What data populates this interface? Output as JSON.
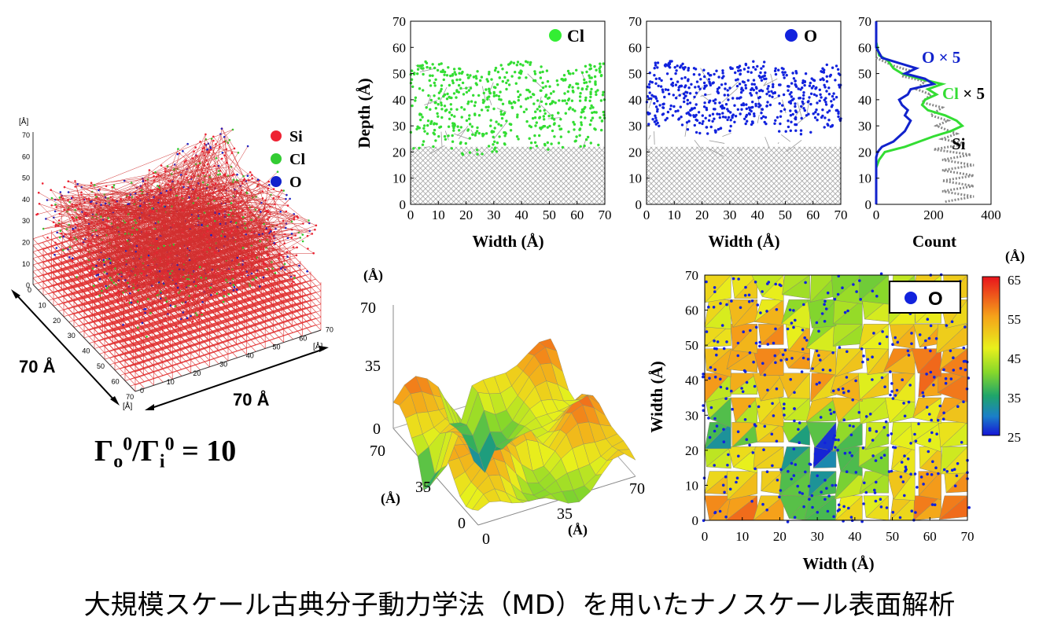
{
  "caption": "大規模スケール古典分子動力学法（MD）を用いたナノスケール表面解析",
  "ratio": {
    "gamma_o": "Γ",
    "o_sub": "o",
    "sup0a": "0",
    "slash": "/Γ",
    "i_sub": "i",
    "sup0b": "0",
    "eq": " = 10"
  },
  "panel3d_structure": {
    "unit": "[Å]",
    "z_ticks": [
      "70",
      "60",
      "50",
      "40",
      "30",
      "20",
      "10",
      "0"
    ],
    "x_ticks": [
      "0",
      "10",
      "20",
      "30",
      "40",
      "50",
      "60",
      "70"
    ],
    "y_ticks": [
      "0",
      "10",
      "20",
      "30",
      "40",
      "50",
      "60",
      "70"
    ],
    "size_label_left": "70 Å",
    "size_label_bottom": "70 Å",
    "legend": [
      {
        "label": "Si",
        "color": "#ee2233"
      },
      {
        "label": "Cl",
        "color": "#33cc33"
      },
      {
        "label": "O",
        "color": "#1122cc"
      }
    ]
  },
  "chart_data": [
    {
      "type": "scatter",
      "name": "cl-depth-profile",
      "legend": "Cl",
      "xlabel": "Width (Å)",
      "ylabel": "Depth (Å)",
      "xlim": [
        0,
        70
      ],
      "ylim": [
        0,
        70
      ],
      "xticks": [
        "0",
        "10",
        "20",
        "30",
        "40",
        "50",
        "60",
        "70"
      ],
      "yticks": [
        "0",
        "10",
        "20",
        "30",
        "40",
        "50",
        "60",
        "70"
      ],
      "marker_color": "#33dd33",
      "silicon_lattice_top": 22,
      "atom_band": [
        20,
        53
      ]
    },
    {
      "type": "scatter",
      "name": "o-depth-profile",
      "legend": "O",
      "xlabel": "Width (Å)",
      "ylabel": "",
      "xlim": [
        0,
        70
      ],
      "ylim": [
        0,
        70
      ],
      "xticks": [
        "0",
        "10",
        "20",
        "30",
        "40",
        "50",
        "60",
        "70"
      ],
      "yticks": [
        "0",
        "10",
        "20",
        "30",
        "40",
        "50",
        "60",
        "70"
      ],
      "marker_color": "#1122dd",
      "silicon_lattice_top": 22,
      "atom_band": [
        28,
        53
      ]
    },
    {
      "type": "line",
      "name": "count-profile",
      "xlabel": "Count",
      "xlim": [
        0,
        400
      ],
      "ylim": [
        0,
        70
      ],
      "xticks": [
        "0",
        "200",
        "400"
      ],
      "yticks": [
        "0",
        "10",
        "20",
        "30",
        "40",
        "50",
        "60",
        "70"
      ],
      "series": [
        {
          "name": "O",
          "label_extra": " × 5",
          "color": "#1122cc",
          "points": [
            [
              0,
              70
            ],
            [
              0,
              60
            ],
            [
              20,
              56
            ],
            [
              80,
              54
            ],
            [
              140,
              52
            ],
            [
              100,
              50
            ],
            [
              170,
              48
            ],
            [
              200,
              46
            ],
            [
              120,
              44
            ],
            [
              110,
              42
            ],
            [
              80,
              40
            ],
            [
              90,
              38
            ],
            [
              110,
              36
            ],
            [
              100,
              34
            ],
            [
              120,
              32
            ],
            [
              110,
              30
            ],
            [
              100,
              28
            ],
            [
              80,
              26
            ],
            [
              60,
              24
            ],
            [
              20,
              22
            ],
            [
              5,
              20
            ],
            [
              0,
              18
            ],
            [
              0,
              0
            ]
          ]
        },
        {
          "name": "Cl",
          "label_extra": " × 5",
          "color": "#33dd33",
          "points": [
            [
              0,
              62
            ],
            [
              10,
              57
            ],
            [
              40,
              55
            ],
            [
              60,
              52
            ],
            [
              90,
              50
            ],
            [
              150,
              48
            ],
            [
              230,
              46
            ],
            [
              180,
              44
            ],
            [
              210,
              42
            ],
            [
              170,
              40
            ],
            [
              160,
              38
            ],
            [
              180,
              36
            ],
            [
              240,
              34
            ],
            [
              280,
              32
            ],
            [
              300,
              30
            ],
            [
              260,
              28
            ],
            [
              200,
              26
            ],
            [
              150,
              24
            ],
            [
              100,
              22
            ],
            [
              30,
              20
            ],
            [
              10,
              17
            ],
            [
              0,
              14
            ],
            [
              0,
              0
            ]
          ]
        },
        {
          "name": "Si",
          "label_extra": "",
          "color": "#888888",
          "dotted": true,
          "points": [
            [
              0,
              56
            ],
            [
              60,
              53
            ],
            [
              120,
              51
            ],
            [
              90,
              49
            ],
            [
              170,
              47
            ],
            [
              140,
              44
            ],
            [
              190,
              42
            ],
            [
              160,
              39
            ],
            [
              230,
              37
            ],
            [
              190,
              34
            ],
            [
              250,
              32
            ],
            [
              210,
              30
            ],
            [
              280,
              27
            ],
            [
              230,
              25
            ],
            [
              310,
              23
            ],
            [
              200,
              21
            ],
            [
              330,
              19
            ],
            [
              230,
              17
            ],
            [
              340,
              15
            ],
            [
              230,
              13
            ],
            [
              340,
              11
            ],
            [
              230,
              9
            ],
            [
              340,
              7
            ],
            [
              230,
              5
            ],
            [
              340,
              3
            ],
            [
              240,
              1
            ]
          ]
        }
      ]
    },
    {
      "type": "heatmap",
      "name": "surface-3d",
      "unit": "(Å)",
      "z_ticks": [
        "70",
        "35",
        "0"
      ],
      "y_ticks": [
        "70",
        "35",
        "0"
      ],
      "x_ticks": [
        "0",
        "35",
        "70"
      ]
    },
    {
      "type": "heatmap",
      "name": "surface-topview",
      "legend": "O",
      "xlabel": "Width (Å)",
      "ylabel": "Width (Å)",
      "xlim": [
        0,
        70
      ],
      "ylim": [
        0,
        70
      ],
      "xticks": [
        "0",
        "10",
        "20",
        "30",
        "40",
        "50",
        "60",
        "70"
      ],
      "yticks": [
        "0",
        "10",
        "20",
        "30",
        "40",
        "50",
        "60",
        "70"
      ],
      "colorbar": {
        "unit": "(Å)",
        "ticks": [
          "65",
          "55",
          "45",
          "35",
          "25"
        ],
        "range": [
          25,
          65
        ]
      }
    }
  ]
}
